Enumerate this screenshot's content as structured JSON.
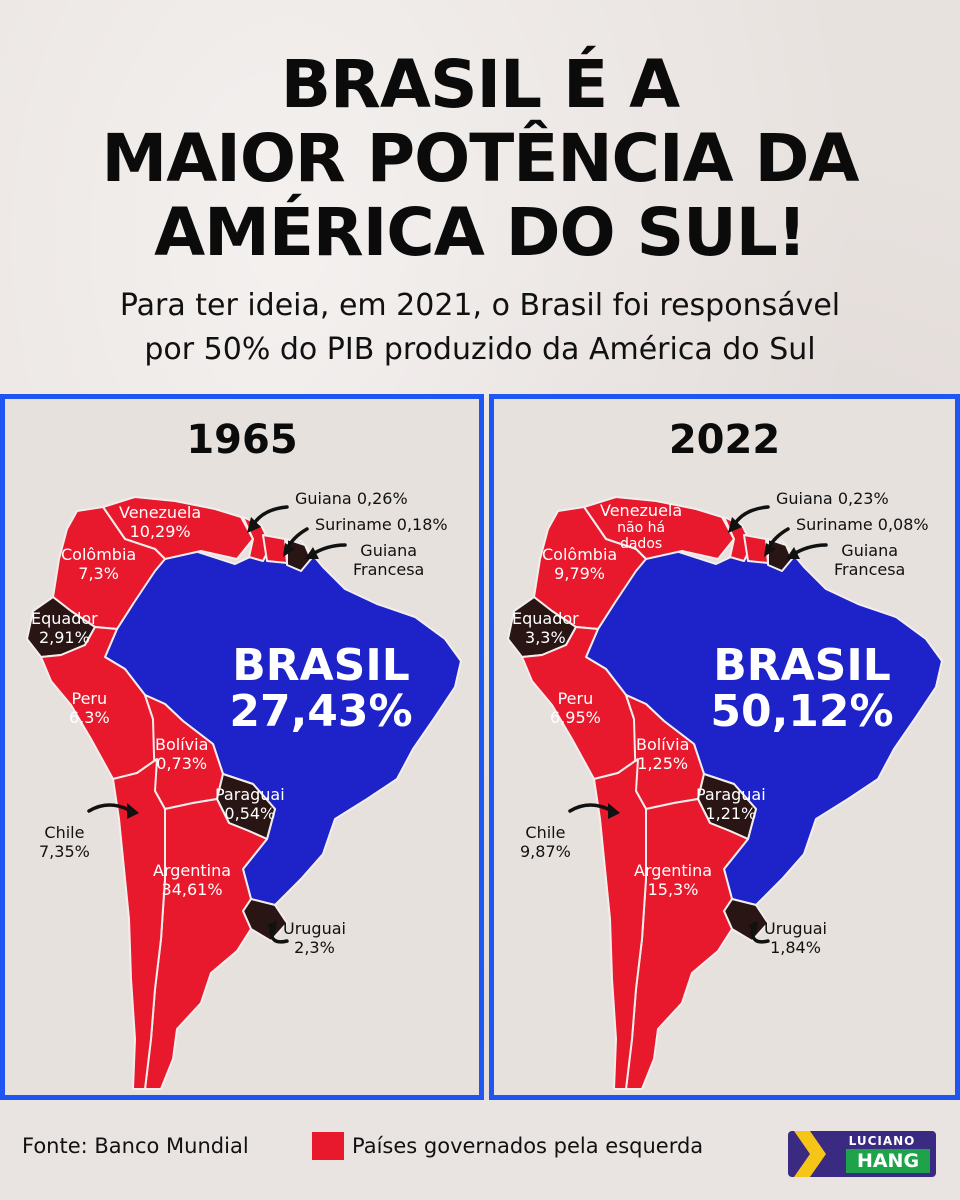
{
  "headline": [
    "BRASIL É A",
    "MAIOR POTÊNCIA DA",
    "AMÉRICA DO SUL!"
  ],
  "subheadline": [
    "Para ter ideia, em 2021, o Brasil foi responsável",
    "por 50% do PIB produzido da América do Sul"
  ],
  "colors": {
    "left_governed": "#e8192c",
    "brasil": "#1d22c9",
    "other": "#2a1515",
    "frame": "#1f55f0"
  },
  "panels": [
    {
      "year": "1965",
      "brasil": [
        "BRASIL",
        "27,43%"
      ],
      "countries": {
        "venezuela": [
          "Venezuela",
          "10,29%"
        ],
        "colombia": [
          "Colômbia",
          "7,3%"
        ],
        "equador": [
          "Equador",
          "2,91%"
        ],
        "peru": [
          "Peru",
          "6,3%"
        ],
        "bolivia": [
          "Bolívia",
          "0,73%"
        ],
        "paraguai": [
          "Paraguai",
          "0,54%"
        ],
        "chile": [
          "Chile",
          "7,35%"
        ],
        "argentina": [
          "Argentina",
          "34,61%"
        ],
        "uruguai": [
          "Uruguai",
          "2,3%"
        ],
        "guiana": "Guiana 0,26%",
        "suriname": "Suriname  0,18%",
        "guiana_francesa": [
          "Guiana",
          "Francesa"
        ]
      }
    },
    {
      "year": "2022",
      "brasil": [
        "BRASIL",
        "50,12%"
      ],
      "countries": {
        "venezuela": [
          "Venezuela",
          "não há",
          "dados"
        ],
        "colombia": [
          "Colômbia",
          "9,79%"
        ],
        "equador": [
          "Equador",
          "3,3%"
        ],
        "peru": [
          "Peru",
          "6,95%"
        ],
        "bolivia": [
          "Bolívia",
          "1,25%"
        ],
        "paraguai": [
          "Paraguai",
          "1,21%"
        ],
        "chile": [
          "Chile",
          "9,87%"
        ],
        "argentina": [
          "Argentina",
          "15,3%"
        ],
        "uruguai": [
          "Uruguai",
          "1,84%"
        ],
        "guiana": "Guiana 0,23%",
        "suriname": "Suriname  0,08%",
        "guiana_francesa": [
          "Guiana",
          "Francesa"
        ]
      }
    }
  ],
  "footer": {
    "source": "Fonte: Banco Mundial",
    "legend": "Países governados pela esquerda",
    "logo_top": "LUCIANO",
    "logo_bottom": "HANG"
  }
}
